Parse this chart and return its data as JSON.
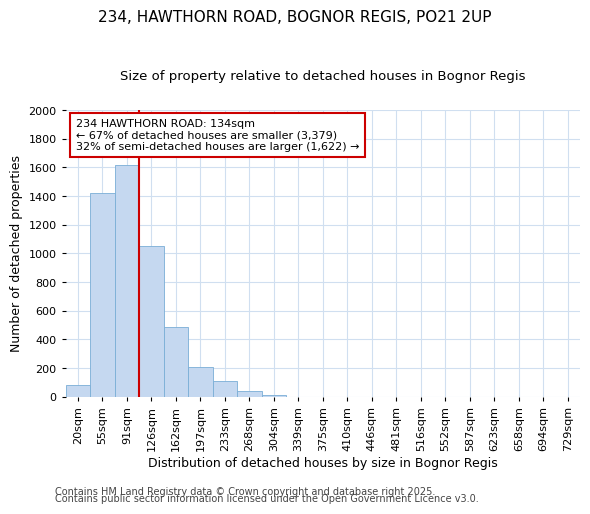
{
  "title1": "234, HAWTHORN ROAD, BOGNOR REGIS, PO21 2UP",
  "title2": "Size of property relative to detached houses in Bognor Regis",
  "xlabel": "Distribution of detached houses by size in Bognor Regis",
  "ylabel": "Number of detached properties",
  "footer1": "Contains HM Land Registry data © Crown copyright and database right 2025.",
  "footer2": "Contains public sector information licensed under the Open Government Licence v3.0.",
  "categories": [
    "20sqm",
    "55sqm",
    "91sqm",
    "126sqm",
    "162sqm",
    "197sqm",
    "233sqm",
    "268sqm",
    "304sqm",
    "339sqm",
    "375sqm",
    "410sqm",
    "446sqm",
    "481sqm",
    "516sqm",
    "552sqm",
    "587sqm",
    "623sqm",
    "658sqm",
    "694sqm",
    "729sqm"
  ],
  "values": [
    80,
    1420,
    1620,
    1050,
    490,
    205,
    110,
    40,
    15,
    0,
    0,
    0,
    0,
    0,
    0,
    0,
    0,
    0,
    0,
    0,
    0
  ],
  "bar_color": "#c5d8f0",
  "bar_edge_color": "#7aaed6",
  "red_line_x": 3,
  "red_line_color": "#cc0000",
  "annotation_line1": "234 HAWTHORN ROAD: 134sqm",
  "annotation_line2": "← 67% of detached houses are smaller (3,379)",
  "annotation_line3": "32% of semi-detached houses are larger (1,622) →",
  "annotation_box_color": "#ffffff",
  "annotation_border_color": "#cc0000",
  "ylim": [
    0,
    2000
  ],
  "yticks": [
    0,
    200,
    400,
    600,
    800,
    1000,
    1200,
    1400,
    1600,
    1800,
    2000
  ],
  "bg_color": "#ffffff",
  "grid_color": "#d0dff0",
  "title_fontsize": 11,
  "subtitle_fontsize": 9.5,
  "axis_label_fontsize": 9,
  "tick_fontsize": 8,
  "footer_fontsize": 7
}
